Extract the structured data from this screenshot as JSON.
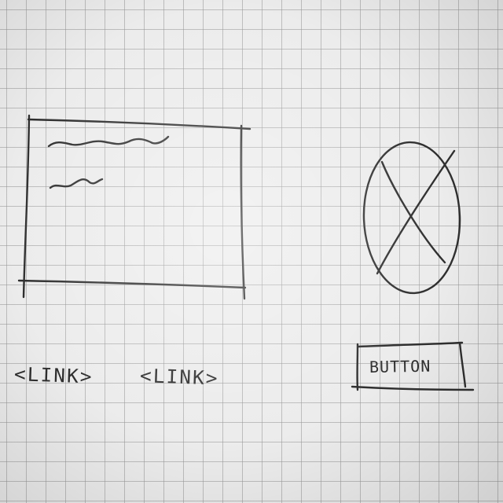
{
  "links": [
    {
      "label": "<LINK>"
    },
    {
      "label": "<LINK>"
    }
  ],
  "button": {
    "label": "BUTTON"
  },
  "image_placeholder": {
    "icon": "image-placeholder-icon"
  },
  "text_block": {
    "lines": [
      "squiggle-text-line",
      "squiggle-text-line"
    ]
  }
}
